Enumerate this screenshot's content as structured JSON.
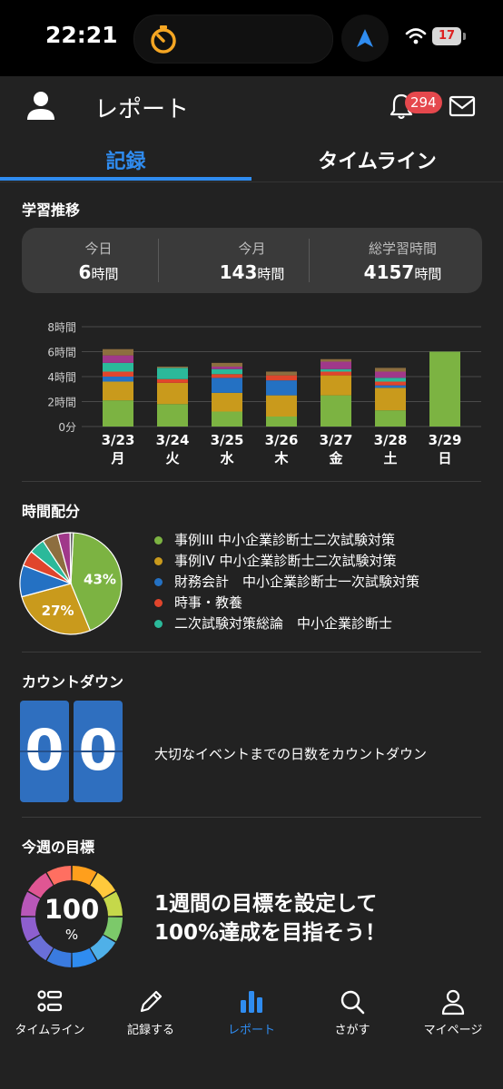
{
  "status_bar": {
    "time": "22:21",
    "battery": "17"
  },
  "header": {
    "title": "レポート",
    "notification_count": "294"
  },
  "tabs": [
    {
      "label": "記録",
      "active": true
    },
    {
      "label": "タイムライン",
      "active": false
    }
  ],
  "study_trend": {
    "section_title": "学習推移",
    "stats": [
      {
        "label": "今日",
        "value": "6",
        "unit": "時間"
      },
      {
        "label": "今月",
        "value": "143",
        "unit": "時間"
      },
      {
        "label": "総学習時間",
        "value": "4157",
        "unit": "時間"
      }
    ]
  },
  "chart_data": {
    "type": "bar",
    "stacked": true,
    "categories": [
      "3/23",
      "3/24",
      "3/25",
      "3/26",
      "3/27",
      "3/28",
      "3/29"
    ],
    "weekdays": [
      "月",
      "火",
      "水",
      "木",
      "金",
      "土",
      "日"
    ],
    "y_ticks": [
      "0分",
      "2時間",
      "4時間",
      "6時間",
      "8時間"
    ],
    "ylim": [
      0,
      8
    ],
    "series": [
      {
        "name": "事例III 中小企業診断士二次試験対策",
        "color": "#7cb342",
        "values": [
          2.1,
          1.8,
          1.2,
          0.8,
          2.5,
          1.3,
          6.0
        ]
      },
      {
        "name": "事例IV 中小企業診断士二次試験対策",
        "color": "#c99a1c",
        "values": [
          1.5,
          1.7,
          1.5,
          1.7,
          1.6,
          1.8,
          0
        ]
      },
      {
        "name": "財務会計　中小企業診断士一次試験対策",
        "color": "#2471c3",
        "values": [
          0.4,
          0,
          1.2,
          1.2,
          0,
          0.2,
          0
        ]
      },
      {
        "name": "時事・教養",
        "color": "#e0452c",
        "values": [
          0.4,
          0.3,
          0.3,
          0.4,
          0.3,
          0.3,
          0
        ]
      },
      {
        "name": "二次試験対策総論　中小企業診断士",
        "color": "#2bb99a",
        "values": [
          0.7,
          0.9,
          0.4,
          0,
          0.2,
          0.3,
          0
        ]
      },
      {
        "name": "",
        "color": "#a0388a",
        "values": [
          0.6,
          0,
          0.2,
          0,
          0.6,
          0.5,
          0
        ]
      },
      {
        "name": "",
        "color": "#8d6e3f",
        "values": [
          0.5,
          0.1,
          0.3,
          0.3,
          0.2,
          0.3,
          0
        ]
      }
    ]
  },
  "time_allocation": {
    "section_title": "時間配分",
    "pie": [
      {
        "color": "#7cb342",
        "value": 43,
        "label": "43%"
      },
      {
        "color": "#c99a1c",
        "value": 27,
        "label": "27%"
      },
      {
        "color": "#2471c3",
        "value": 10,
        "label": ""
      },
      {
        "color": "#e0452c",
        "value": 5,
        "label": ""
      },
      {
        "color": "#2bb99a",
        "value": 5,
        "label": ""
      },
      {
        "color": "#8d6e3f",
        "value": 5,
        "label": ""
      },
      {
        "color": "#a0388a",
        "value": 4,
        "label": ""
      },
      {
        "color": "#6b6b6b",
        "value": 1,
        "label": ""
      }
    ],
    "legend": [
      {
        "color": "#7cb342",
        "label": "事例III 中小企業診断士二次試験対策"
      },
      {
        "color": "#c99a1c",
        "label": "事例IV 中小企業診断士二次試験対策"
      },
      {
        "color": "#2471c3",
        "label": "財務会計　中小企業診断士一次試験対策"
      },
      {
        "color": "#e0452c",
        "label": "時事・教養"
      },
      {
        "color": "#2bb99a",
        "label": "二次試験対策総論　中小企業診断士"
      }
    ]
  },
  "countdown": {
    "section_title": "カウントダウン",
    "digits": [
      "0",
      "0"
    ],
    "message": "大切なイベントまでの日数をカウントダウン"
  },
  "weekly_goal": {
    "section_title": "今週の目標",
    "value": "100",
    "unit": "%",
    "message_line1": "1週間の目標を設定して",
    "message_line2": "100%達成を目指そう！"
  },
  "bottom_nav": [
    {
      "label": "タイムライン",
      "icon": "list-icon",
      "active": false
    },
    {
      "label": "記録する",
      "icon": "pencil-icon",
      "active": false
    },
    {
      "label": "レポート",
      "icon": "bar-chart-icon",
      "active": true
    },
    {
      "label": "さがす",
      "icon": "search-icon",
      "active": false
    },
    {
      "label": "マイページ",
      "icon": "person-icon",
      "active": false
    }
  ],
  "colors": {
    "accent": "#2f8cf0",
    "background": "#222222",
    "badge": "#e5484d",
    "timer": "#f5a623"
  }
}
